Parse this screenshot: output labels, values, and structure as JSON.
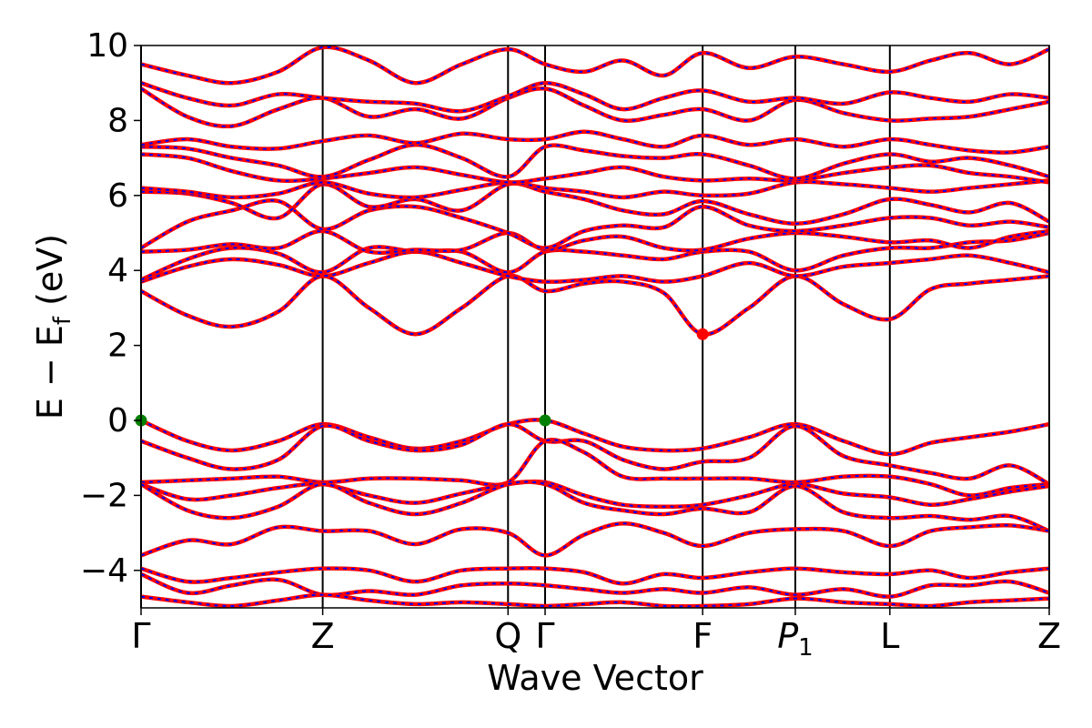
{
  "chart_data": {
    "type": "line",
    "title": "",
    "xlabel": "Wave Vector",
    "ylabel_main": "E − E",
    "ylabel_sub": "f",
    "ylabel_unit": " (eV)",
    "ylim": [
      -5,
      10
    ],
    "xlim": [
      0,
      4.9
    ],
    "grid": false,
    "legend": "none",
    "yticks": [
      -4,
      -2,
      0,
      2,
      4,
      6,
      8,
      10
    ],
    "ytick_labels": [
      "−4",
      "−2",
      "0",
      "2",
      "4",
      "6",
      "8",
      "10"
    ],
    "kpoints": [
      {
        "label": "Γ",
        "x": 0.0,
        "italic": false,
        "sub": ""
      },
      {
        "label": "Z",
        "x": 0.98,
        "italic": false,
        "sub": ""
      },
      {
        "label": "Q",
        "x": 1.98,
        "italic": false,
        "sub": ""
      },
      {
        "label": "Γ",
        "x": 2.18,
        "italic": false,
        "sub": ""
      },
      {
        "label": "F",
        "x": 3.03,
        "italic": false,
        "sub": ""
      },
      {
        "label": "P",
        "x": 3.53,
        "italic": true,
        "sub": "1"
      },
      {
        "label": "L",
        "x": 4.04,
        "italic": false,
        "sub": ""
      },
      {
        "label": "Z",
        "x": 4.9,
        "italic": false,
        "sub": ""
      }
    ],
    "line_styles": {
      "solid_color": "#ff0000",
      "dashed_color": "#0000ff"
    },
    "markers": [
      {
        "name": "vbm",
        "x": 0.0,
        "y": 0.0,
        "color": "#008000"
      },
      {
        "name": "vbm",
        "x": 2.18,
        "y": 0.0,
        "color": "#008000"
      },
      {
        "name": "cbm",
        "x": 3.03,
        "y": 2.3,
        "color": "#ff0000"
      }
    ],
    "series": [
      {
        "x": [
          0,
          0.25,
          0.49,
          0.74,
          0.98,
          1.23,
          1.48,
          1.73,
          1.98,
          2.18,
          2.39,
          2.6,
          2.82,
          3.03,
          3.28,
          3.53,
          3.79,
          4.04,
          4.26,
          4.47,
          4.69,
          4.9
        ],
        "y": [
          0.0,
          -0.55,
          -0.8,
          -0.55,
          -0.1,
          -0.45,
          -0.75,
          -0.55,
          -0.1,
          0.0,
          -0.35,
          -0.7,
          -0.8,
          -0.75,
          -0.45,
          -0.1,
          -0.55,
          -0.9,
          -0.6,
          -0.45,
          -0.3,
          -0.1
        ]
      },
      {
        "x": [
          0,
          0.25,
          0.49,
          0.74,
          0.98,
          1.23,
          1.48,
          1.73,
          1.98,
          2.18,
          2.39,
          2.6,
          2.82,
          3.03,
          3.28,
          3.53,
          3.79,
          4.04,
          4.26,
          4.47,
          4.69,
          4.9
        ],
        "y": [
          -0.55,
          -1.0,
          -1.3,
          -1.05,
          -0.15,
          -0.55,
          -0.8,
          -0.65,
          -0.1,
          -0.55,
          -0.55,
          -1.05,
          -1.3,
          -1.1,
          -1.0,
          -0.15,
          -0.95,
          -1.2,
          -1.4,
          -1.55,
          -1.2,
          -1.7
        ]
      },
      {
        "x": [
          0,
          0.25,
          0.49,
          0.74,
          0.98,
          1.23,
          1.48,
          1.73,
          1.98,
          2.18,
          2.39,
          2.6,
          2.82,
          3.03,
          3.28,
          3.53,
          3.79,
          4.04,
          4.26,
          4.47,
          4.69,
          4.9
        ],
        "y": [
          -1.65,
          -1.6,
          -1.55,
          -1.5,
          -1.65,
          -1.55,
          -1.55,
          -1.6,
          -1.65,
          -0.55,
          -0.85,
          -1.5,
          -1.55,
          -1.55,
          -1.55,
          -1.65,
          -1.5,
          -1.5,
          -1.7,
          -2.0,
          -1.8,
          -1.7
        ]
      },
      {
        "x": [
          0,
          0.25,
          0.49,
          0.74,
          0.98,
          1.23,
          1.48,
          1.73,
          1.98,
          2.18,
          2.39,
          2.6,
          2.82,
          3.03,
          3.28,
          3.53,
          3.79,
          4.04,
          4.26,
          4.47,
          4.69,
          4.9
        ],
        "y": [
          -1.7,
          -2.1,
          -2.0,
          -1.8,
          -1.7,
          -2.0,
          -2.2,
          -1.95,
          -1.7,
          -1.65,
          -2.0,
          -2.25,
          -2.3,
          -2.25,
          -2.0,
          -1.7,
          -1.95,
          -2.05,
          -2.25,
          -2.1,
          -1.9,
          -1.75
        ]
      },
      {
        "x": [
          0,
          0.25,
          0.49,
          0.74,
          0.98,
          1.23,
          1.48,
          1.73,
          1.98,
          2.18,
          2.39,
          2.6,
          2.82,
          3.03,
          3.28,
          3.53,
          3.79,
          4.04,
          4.26,
          4.47,
          4.69,
          4.9
        ],
        "y": [
          -1.7,
          -2.4,
          -2.6,
          -2.3,
          -1.7,
          -2.2,
          -2.5,
          -2.2,
          -1.7,
          -1.7,
          -2.2,
          -2.4,
          -2.5,
          -2.35,
          -2.45,
          -1.75,
          -2.45,
          -2.6,
          -2.55,
          -2.65,
          -2.55,
          -2.95
        ]
      },
      {
        "x": [
          0,
          0.25,
          0.49,
          0.74,
          0.98,
          1.23,
          1.48,
          1.73,
          1.98,
          2.18,
          2.39,
          2.6,
          2.82,
          3.03,
          3.28,
          3.53,
          3.79,
          4.04,
          4.26,
          4.47,
          4.69,
          4.9
        ],
        "y": [
          -3.6,
          -3.2,
          -3.3,
          -2.85,
          -2.95,
          -2.95,
          -3.3,
          -2.9,
          -3.0,
          -3.6,
          -3.05,
          -2.75,
          -3.0,
          -3.35,
          -3.0,
          -2.9,
          -2.95,
          -3.35,
          -2.95,
          -2.85,
          -2.8,
          -2.95
        ]
      },
      {
        "x": [
          0,
          0.25,
          0.49,
          0.74,
          0.98,
          1.23,
          1.48,
          1.73,
          1.98,
          2.18,
          2.39,
          2.6,
          2.82,
          3.03,
          3.28,
          3.53,
          3.79,
          4.04,
          4.26,
          4.47,
          4.69,
          4.9
        ],
        "y": [
          -3.95,
          -4.3,
          -4.2,
          -4.05,
          -3.95,
          -4.0,
          -4.3,
          -4.0,
          -3.95,
          -3.95,
          -4.05,
          -4.35,
          -4.1,
          -4.2,
          -4.05,
          -3.95,
          -4.05,
          -4.1,
          -4.0,
          -4.2,
          -4.05,
          -3.95
        ]
      },
      {
        "x": [
          0,
          0.25,
          0.49,
          0.74,
          0.98,
          1.23,
          1.48,
          1.73,
          1.98,
          2.18,
          2.39,
          2.6,
          2.82,
          3.03,
          3.28,
          3.53,
          3.79,
          4.04,
          4.26,
          4.47,
          4.69,
          4.9
        ],
        "y": [
          -4.1,
          -4.6,
          -4.4,
          -4.25,
          -4.65,
          -4.55,
          -4.65,
          -4.4,
          -4.35,
          -4.4,
          -4.5,
          -4.6,
          -4.5,
          -4.6,
          -4.45,
          -4.65,
          -4.5,
          -4.7,
          -4.4,
          -4.4,
          -4.3,
          -4.6
        ]
      },
      {
        "x": [
          0,
          0.25,
          0.49,
          0.74,
          0.98,
          1.23,
          1.48,
          1.73,
          1.98,
          2.18,
          2.39,
          2.6,
          2.82,
          3.03,
          3.28,
          3.53,
          3.79,
          4.04,
          4.26,
          4.47,
          4.69,
          4.9
        ],
        "y": [
          -4.7,
          -4.85,
          -4.95,
          -4.8,
          -4.65,
          -4.8,
          -4.9,
          -4.85,
          -4.9,
          -4.95,
          -4.9,
          -4.85,
          -4.95,
          -4.95,
          -4.9,
          -4.75,
          -4.85,
          -4.9,
          -4.95,
          -4.85,
          -4.8,
          -4.75
        ]
      },
      {
        "x": [
          0,
          0.25,
          0.49,
          0.74,
          0.98,
          1.23,
          1.48,
          1.73,
          1.98,
          2.18,
          2.39,
          2.6,
          2.82,
          3.03,
          3.28,
          3.53,
          3.79,
          4.04,
          4.26,
          4.47,
          4.69,
          4.9
        ],
        "y": [
          3.45,
          2.8,
          2.5,
          2.9,
          3.85,
          3.0,
          2.3,
          3.0,
          3.85,
          3.45,
          3.65,
          3.7,
          3.4,
          2.3,
          3.0,
          3.85,
          3.1,
          2.7,
          3.5,
          3.65,
          3.75,
          3.85
        ]
      },
      {
        "x": [
          0,
          0.25,
          0.49,
          0.74,
          0.98,
          1.23,
          1.48,
          1.73,
          1.98,
          2.18,
          2.39,
          2.6,
          2.82,
          3.03,
          3.28,
          3.53,
          3.79,
          4.04,
          4.26,
          4.47,
          4.69,
          4.9
        ],
        "y": [
          3.7,
          4.1,
          4.3,
          4.15,
          3.85,
          4.2,
          4.5,
          4.2,
          3.85,
          3.7,
          3.75,
          3.85,
          3.7,
          3.85,
          4.2,
          3.85,
          4.1,
          4.2,
          4.3,
          4.4,
          4.2,
          3.95
        ]
      },
      {
        "x": [
          0,
          0.25,
          0.49,
          0.74,
          0.98,
          1.23,
          1.48,
          1.73,
          1.98,
          2.18,
          2.39,
          2.6,
          2.82,
          3.03,
          3.28,
          3.53,
          3.79,
          4.04,
          4.26,
          4.47,
          4.69,
          4.9
        ],
        "y": [
          3.75,
          4.3,
          4.6,
          4.45,
          3.95,
          4.6,
          4.5,
          4.5,
          3.95,
          4.5,
          4.5,
          4.4,
          4.3,
          4.5,
          4.5,
          4.0,
          4.4,
          4.6,
          4.6,
          4.75,
          4.8,
          5.0
        ]
      },
      {
        "x": [
          0,
          0.25,
          0.49,
          0.74,
          0.98,
          1.23,
          1.48,
          1.73,
          1.98,
          2.18,
          2.39,
          2.6,
          2.82,
          3.03,
          3.28,
          3.53,
          3.79,
          4.04,
          4.26,
          4.47,
          4.69,
          4.9
        ],
        "y": [
          4.5,
          4.55,
          4.7,
          4.6,
          5.05,
          4.5,
          4.55,
          4.55,
          5.0,
          4.55,
          4.8,
          4.9,
          4.6,
          4.55,
          4.85,
          5.0,
          4.9,
          4.75,
          4.8,
          4.6,
          4.9,
          5.05
        ]
      },
      {
        "x": [
          0,
          0.25,
          0.49,
          0.74,
          0.98,
          1.23,
          1.48,
          1.73,
          1.98,
          2.18,
          2.39,
          2.6,
          2.82,
          3.03,
          3.28,
          3.53,
          3.79,
          4.04,
          4.26,
          4.47,
          4.69,
          4.9
        ],
        "y": [
          4.6,
          5.3,
          5.6,
          5.85,
          5.1,
          5.6,
          5.7,
          5.4,
          5.0,
          4.6,
          5.05,
          5.2,
          5.15,
          5.7,
          5.2,
          5.05,
          5.2,
          5.4,
          5.4,
          5.2,
          5.3,
          5.15
        ]
      },
      {
        "x": [
          0,
          0.25,
          0.49,
          0.74,
          0.98,
          1.23,
          1.48,
          1.73,
          1.98,
          2.18,
          2.39,
          2.6,
          2.82,
          3.03,
          3.28,
          3.53,
          3.79,
          4.04,
          4.26,
          4.47,
          4.69,
          4.9
        ],
        "y": [
          6.1,
          6.05,
          5.8,
          5.4,
          6.3,
          5.7,
          5.9,
          5.6,
          6.3,
          6.1,
          5.9,
          5.6,
          5.5,
          5.85,
          5.5,
          5.25,
          5.5,
          5.9,
          5.75,
          5.55,
          5.8,
          5.3
        ]
      },
      {
        "x": [
          0,
          0.25,
          0.49,
          0.74,
          0.98,
          1.23,
          1.48,
          1.73,
          1.98,
          2.18,
          2.39,
          2.6,
          2.82,
          3.03,
          3.28,
          3.53,
          3.79,
          4.04,
          4.26,
          4.47,
          4.69,
          4.9
        ],
        "y": [
          6.2,
          6.1,
          5.95,
          6.05,
          6.35,
          6.05,
          5.95,
          6.15,
          6.35,
          6.2,
          6.1,
          5.95,
          6.1,
          6.0,
          6.05,
          6.35,
          6.3,
          6.2,
          6.1,
          6.2,
          6.3,
          6.4
        ]
      },
      {
        "x": [
          0,
          0.25,
          0.49,
          0.74,
          0.98,
          1.23,
          1.48,
          1.73,
          1.98,
          2.18,
          2.39,
          2.6,
          2.82,
          3.03,
          3.28,
          3.53,
          3.79,
          4.04,
          4.26,
          4.47,
          4.69,
          4.9
        ],
        "y": [
          7.1,
          7.0,
          6.65,
          6.4,
          6.45,
          6.6,
          6.75,
          6.55,
          6.35,
          6.45,
          6.6,
          6.75,
          6.5,
          6.4,
          6.45,
          6.4,
          6.6,
          6.75,
          6.8,
          6.6,
          6.5,
          6.35
        ]
      },
      {
        "x": [
          0,
          0.25,
          0.49,
          0.74,
          0.98,
          1.23,
          1.48,
          1.73,
          1.98,
          2.18,
          2.39,
          2.6,
          2.82,
          3.03,
          3.28,
          3.53,
          3.79,
          4.04,
          4.26,
          4.47,
          4.69,
          4.9
        ],
        "y": [
          7.3,
          7.25,
          7.0,
          6.8,
          6.5,
          6.95,
          7.35,
          7.0,
          6.5,
          7.3,
          7.2,
          7.05,
          7.0,
          7.1,
          6.8,
          6.45,
          6.85,
          7.1,
          6.9,
          7.0,
          6.8,
          6.5
        ]
      },
      {
        "x": [
          0,
          0.25,
          0.49,
          0.74,
          0.98,
          1.23,
          1.48,
          1.73,
          1.98,
          2.18,
          2.39,
          2.6,
          2.82,
          3.03,
          3.28,
          3.53,
          3.79,
          4.04,
          4.26,
          4.47,
          4.69,
          4.9
        ],
        "y": [
          7.35,
          7.5,
          7.3,
          7.25,
          7.45,
          7.6,
          7.4,
          7.65,
          7.5,
          7.5,
          7.7,
          7.5,
          7.3,
          7.6,
          7.35,
          7.5,
          7.3,
          7.5,
          7.35,
          7.2,
          7.15,
          7.3
        ]
      },
      {
        "x": [
          0,
          0.25,
          0.49,
          0.74,
          0.98,
          1.23,
          1.48,
          1.73,
          1.98,
          2.18,
          2.39,
          2.6,
          2.82,
          3.03,
          3.28,
          3.53,
          3.79,
          4.04,
          4.26,
          4.47,
          4.69,
          4.9
        ],
        "y": [
          8.85,
          8.1,
          7.85,
          8.3,
          8.6,
          8.1,
          8.3,
          8.05,
          8.6,
          8.85,
          8.4,
          8.0,
          8.15,
          8.3,
          8.0,
          8.55,
          8.2,
          8.0,
          8.05,
          8.1,
          8.3,
          8.5
        ]
      },
      {
        "x": [
          0,
          0.25,
          0.49,
          0.74,
          0.98,
          1.23,
          1.48,
          1.73,
          1.98,
          2.18,
          2.39,
          2.6,
          2.82,
          3.03,
          3.28,
          3.53,
          3.79,
          4.04,
          4.26,
          4.47,
          4.69,
          4.9
        ],
        "y": [
          9.0,
          8.6,
          8.4,
          8.7,
          8.6,
          8.5,
          8.45,
          8.25,
          8.65,
          9.0,
          8.7,
          8.3,
          8.6,
          8.8,
          8.5,
          8.6,
          8.45,
          8.75,
          8.6,
          8.5,
          8.7,
          8.6
        ]
      },
      {
        "x": [
          0,
          0.25,
          0.49,
          0.74,
          0.98,
          1.23,
          1.48,
          1.73,
          1.98,
          2.18,
          2.39,
          2.6,
          2.82,
          3.03,
          3.28,
          3.53,
          3.79,
          4.04,
          4.26,
          4.47,
          4.69,
          4.9
        ],
        "y": [
          9.5,
          9.2,
          9.0,
          9.3,
          9.95,
          9.6,
          9.0,
          9.5,
          9.9,
          9.5,
          9.3,
          9.6,
          9.2,
          9.8,
          9.4,
          9.7,
          9.5,
          9.3,
          9.6,
          9.8,
          9.5,
          9.9
        ]
      }
    ]
  }
}
